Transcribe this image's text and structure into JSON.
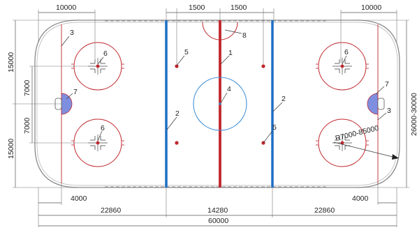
{
  "dimensions": {
    "top_left_zone": "10000",
    "top_right_zone": "10000",
    "top_dot_left": "1500",
    "top_dot_right": "1500",
    "left_upper": "15000",
    "left_lower": "15000",
    "left_circle_upper": "7000",
    "left_circle_lower": "7000",
    "right_width": "26000-30000",
    "bottom_goal_left": "4000",
    "bottom_goal_right": "4000",
    "bottom_end_left": "22860",
    "bottom_neutral": "14280",
    "bottom_end_right": "22860",
    "total_length": "60000",
    "corner_radius": "R7000-85000"
  },
  "labels": {
    "center_line": "1",
    "blue_line_left": "2",
    "blue_line_right": "2",
    "goal_line_left": "3",
    "goal_line_right": "3",
    "center_circle": "4",
    "neutral_dot_left": "5",
    "neutral_dot_right": "5",
    "faceoff_left_top": "6",
    "faceoff_left_bottom": "6",
    "faceoff_right_top": "6",
    "goal_crease_left": "7",
    "goal_crease_right": "7",
    "referee_crease": "8"
  },
  "colors": {
    "red": "#c0272d",
    "blue": "#1f6fc4",
    "crease_fill": "#7e8fe0",
    "center_circle": "#3d8fd6",
    "board": "#8a8a8a"
  }
}
